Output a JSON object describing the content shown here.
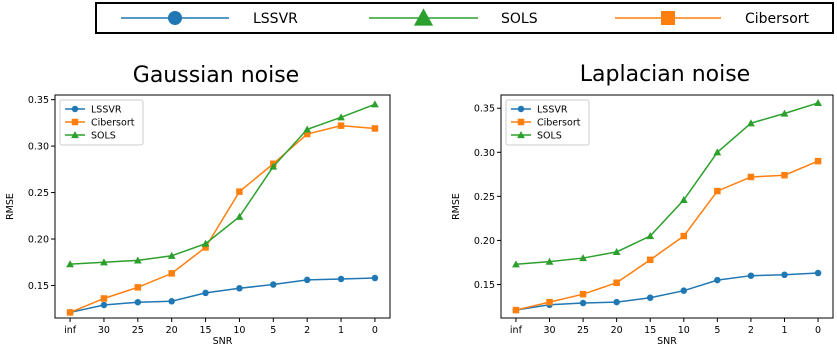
{
  "top_legend": {
    "entries": [
      {
        "label": "LSSVR",
        "color": "#1f77b4",
        "marker": "circle"
      },
      {
        "label": "SOLS",
        "color": "#2ca02c",
        "marker": "triangle"
      },
      {
        "label": "Cibersort",
        "color": "#ff7f0e",
        "marker": "square"
      }
    ]
  },
  "chart_data": [
    {
      "type": "line",
      "title": "Gaussian noise",
      "xlabel": "SNR",
      "ylabel": "RMSE",
      "categories": [
        "inf",
        "30",
        "25",
        "20",
        "15",
        "10",
        "5",
        "2",
        "1",
        "0"
      ],
      "ylim": [
        0.115,
        0.355
      ],
      "yticks": [
        0.15,
        0.2,
        0.25,
        0.3,
        0.35
      ],
      "ytick_labels": [
        "0.15",
        "0.20",
        "0.25",
        "0.30",
        "0.35"
      ],
      "legend_position": "upper-left",
      "grid": false,
      "series": [
        {
          "name": "LSSVR",
          "color": "#1f77b4",
          "marker": "circle",
          "values": [
            0.121,
            0.129,
            0.132,
            0.133,
            0.142,
            0.147,
            0.151,
            0.156,
            0.157,
            0.158
          ]
        },
        {
          "name": "Cibersort",
          "color": "#ff7f0e",
          "marker": "square",
          "values": [
            0.121,
            0.136,
            0.148,
            0.163,
            0.191,
            0.251,
            0.281,
            0.313,
            0.322,
            0.319
          ]
        },
        {
          "name": "SOLS",
          "color": "#2ca02c",
          "marker": "triangle",
          "values": [
            0.173,
            0.175,
            0.177,
            0.182,
            0.195,
            0.224,
            0.278,
            0.318,
            0.331,
            0.345
          ]
        }
      ]
    },
    {
      "type": "line",
      "title": "Laplacian noise",
      "xlabel": "SNR",
      "ylabel": "RMSE",
      "categories": [
        "inf",
        "30",
        "25",
        "20",
        "15",
        "10",
        "5",
        "2",
        "1",
        "0"
      ],
      "ylim": [
        0.112,
        0.365
      ],
      "yticks": [
        0.15,
        0.2,
        0.25,
        0.3,
        0.35
      ],
      "ytick_labels": [
        "0.15",
        "0.20",
        "0.25",
        "0.30",
        "0.35"
      ],
      "legend_position": "upper-left",
      "grid": false,
      "series": [
        {
          "name": "LSSVR",
          "color": "#1f77b4",
          "marker": "circle",
          "values": [
            0.121,
            0.127,
            0.129,
            0.13,
            0.135,
            0.143,
            0.155,
            0.16,
            0.161,
            0.163
          ]
        },
        {
          "name": "Cibersort",
          "color": "#ff7f0e",
          "marker": "square",
          "values": [
            0.121,
            0.13,
            0.139,
            0.152,
            0.178,
            0.205,
            0.256,
            0.272,
            0.274,
            0.29
          ]
        },
        {
          "name": "SOLS",
          "color": "#2ca02c",
          "marker": "triangle",
          "values": [
            0.173,
            0.176,
            0.18,
            0.187,
            0.205,
            0.246,
            0.3,
            0.333,
            0.344,
            0.356
          ]
        }
      ]
    }
  ]
}
